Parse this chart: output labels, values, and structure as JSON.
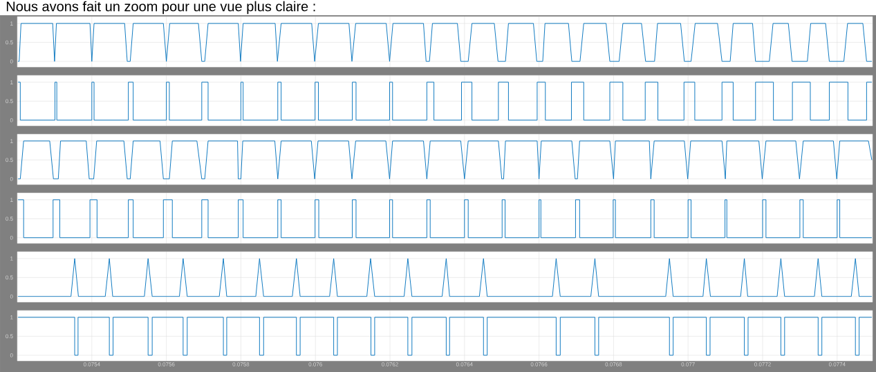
{
  "chart_data": [
    {
      "type": "line",
      "title": "Nous avons fait un zoom pour une vue plus claire :",
      "color": "#0072bd",
      "grid": true,
      "tick_labels": "y",
      "xlim": [
        0.0752,
        0.077495
      ],
      "ylim": [
        -0.15,
        1.18
      ],
      "xticks": [
        0.0754,
        0.0756,
        0.0758,
        0.076,
        0.0762,
        0.0764,
        0.0766,
        0.0768,
        0.077,
        0.0772,
        0.0774
      ],
      "yticks": [
        0,
        0.5,
        1
      ],
      "x": [
        0.075202,
        0.075205,
        0.07521,
        0.075295,
        0.0753,
        0.075305,
        0.075395,
        0.0754,
        0.075406,
        0.075488,
        0.075495,
        0.075503,
        0.075511,
        0.075592,
        0.0756,
        0.075609,
        0.075686,
        0.075695,
        0.075703,
        0.075712,
        0.075793,
        0.075799,
        0.075806,
        0.075892,
        0.075898,
        0.075908,
        0.07599,
        0.075998,
        0.076008,
        0.07609,
        0.076098,
        0.076108,
        0.07619,
        0.076199,
        0.076208,
        0.07629,
        0.076297,
        0.076306,
        0.076314,
        0.076381,
        0.07639,
        0.07641,
        0.07642,
        0.07648,
        0.07649,
        0.07651,
        0.076518,
        0.076585,
        0.076594,
        0.07661,
        0.076616,
        0.076679,
        0.076688,
        0.07671,
        0.07672,
        0.07678,
        0.07679,
        0.076815,
        0.076825,
        0.076875,
        0.076886,
        0.07691,
        0.076918,
        0.07698,
        0.07699,
        0.077008,
        0.077019,
        0.077079,
        0.077091,
        0.077113,
        0.077121,
        0.077173,
        0.077181,
        0.077218,
        0.077228,
        0.077269,
        0.077279,
        0.07732,
        0.077329,
        0.077369,
        0.077379,
        0.077418,
        0.077428,
        0.077469,
        0.077479,
        0.077493
      ],
      "values": [
        0,
        0,
        1,
        1,
        0,
        1,
        1,
        0,
        1,
        1,
        0,
        0,
        1,
        1,
        0,
        1,
        1,
        0,
        0,
        1,
        1,
        0,
        1,
        1,
        0,
        1,
        1,
        0,
        1,
        1,
        0,
        1,
        1,
        0,
        1,
        1,
        0,
        0,
        1,
        1,
        0,
        0,
        1,
        1,
        0,
        0,
        1,
        1,
        0,
        0,
        1,
        1,
        0,
        0,
        1,
        1,
        0,
        0,
        1,
        1,
        0,
        0,
        1,
        1,
        0,
        0,
        1,
        1,
        0,
        0,
        1,
        1,
        0,
        0,
        1,
        1,
        0,
        0,
        1,
        1,
        0,
        0,
        1,
        1,
        0,
        0
      ]
    },
    {
      "type": "step",
      "color": "#0072bd",
      "grid": true,
      "tick_labels": "y",
      "xlim": [
        0.0752,
        0.077495
      ],
      "ylim": [
        -0.15,
        1.18
      ],
      "xticks": [
        0.0754,
        0.0756,
        0.0758,
        0.076,
        0.0762,
        0.0764,
        0.0766,
        0.0768,
        0.077,
        0.0772,
        0.0774
      ],
      "yticks": [
        0,
        0.5,
        1
      ],
      "x": [
        0.075202,
        0.075208,
        0.075301,
        0.075306,
        0.0754,
        0.075406,
        0.075498,
        0.075511,
        0.0756,
        0.075608,
        0.075695,
        0.075712,
        0.0758,
        0.075806,
        0.075899,
        0.075908,
        0.075999,
        0.076008,
        0.076099,
        0.076109,
        0.076199,
        0.076207,
        0.076299,
        0.076318,
        0.076392,
        0.07642,
        0.076491,
        0.076518,
        0.076595,
        0.076617,
        0.076687,
        0.07672,
        0.07679,
        0.076825,
        0.076885,
        0.076919,
        0.076989,
        0.077018,
        0.077091,
        0.077121,
        0.077181,
        0.077229,
        0.07728,
        0.077328,
        0.077379,
        0.077429,
        0.077479,
        0.077493
      ],
      "values": [
        1,
        0,
        1,
        0,
        1,
        0,
        1,
        0,
        1,
        0,
        1,
        0,
        1,
        0,
        1,
        0,
        1,
        0,
        1,
        0,
        1,
        0,
        1,
        0,
        1,
        0,
        1,
        0,
        1,
        0,
        1,
        0,
        1,
        0,
        1,
        0,
        1,
        0,
        1,
        0,
        1,
        0,
        1,
        0,
        1,
        0,
        1,
        1
      ]
    },
    {
      "type": "line",
      "color": "#0072bd",
      "grid": true,
      "tick_labels": "y",
      "xlim": [
        0.0752,
        0.077495
      ],
      "ylim": [
        -0.15,
        1.18
      ],
      "xticks": [
        0.0754,
        0.0756,
        0.0758,
        0.076,
        0.0762,
        0.0764,
        0.0766,
        0.0768,
        0.077,
        0.0772,
        0.0774
      ],
      "yticks": [
        0,
        0.5,
        1
      ],
      "x": [
        0.075202,
        0.075208,
        0.075217,
        0.075287,
        0.075297,
        0.07531,
        0.075316,
        0.075385,
        0.075393,
        0.075405,
        0.075413,
        0.075486,
        0.075495,
        0.075503,
        0.075511,
        0.075583,
        0.075592,
        0.075608,
        0.075616,
        0.075682,
        0.075695,
        0.075703,
        0.075712,
        0.075791,
        0.075793,
        0.0758,
        0.075805,
        0.075891,
        0.075899,
        0.075908,
        0.075989,
        0.075998,
        0.076007,
        0.076089,
        0.076098,
        0.076108,
        0.076189,
        0.076199,
        0.076207,
        0.07629,
        0.076299,
        0.076308,
        0.07639,
        0.0764,
        0.07641,
        0.076491,
        0.0765,
        0.076505,
        0.07651,
        0.076595,
        0.0766,
        0.076606,
        0.076688,
        0.076697,
        0.076703,
        0.076709,
        0.07679,
        0.0768,
        0.076805,
        0.076896,
        0.0769,
        0.076909,
        0.07699,
        0.076999,
        0.077007,
        0.077091,
        0.0771,
        0.077104,
        0.07719,
        0.077199,
        0.077209,
        0.077289,
        0.077299,
        0.077309,
        0.07739,
        0.077399,
        0.077407,
        0.077484,
        0.077493
      ],
      "values": [
        0,
        0,
        1,
        1,
        0,
        0,
        1,
        1,
        0,
        0,
        1,
        1,
        0,
        0,
        1,
        1,
        0,
        0,
        1,
        1,
        0,
        0,
        1,
        1,
        0,
        0,
        1,
        1,
        0,
        1,
        1,
        0,
        1,
        1,
        0,
        1,
        1,
        0,
        1,
        1,
        0,
        1,
        1,
        0,
        1,
        1,
        0,
        0,
        1,
        1,
        0,
        1,
        1,
        0,
        0,
        1,
        1,
        0,
        1,
        1,
        0,
        1,
        1,
        0,
        1,
        1,
        0,
        1,
        1,
        0,
        1,
        1,
        0,
        1,
        1,
        0,
        1,
        1,
        0.5
      ]
    },
    {
      "type": "step",
      "color": "#0072bd",
      "grid": true,
      "tick_labels": "y",
      "xlim": [
        0.0752,
        0.077495
      ],
      "ylim": [
        -0.15,
        1.18
      ],
      "xticks": [
        0.0754,
        0.0756,
        0.0758,
        0.076,
        0.0762,
        0.0764,
        0.0766,
        0.0768,
        0.077,
        0.0772,
        0.0774
      ],
      "yticks": [
        0,
        0.5,
        1
      ],
      "x": [
        0.075202,
        0.075217,
        0.075296,
        0.075314,
        0.075395,
        0.075414,
        0.075498,
        0.075511,
        0.075592,
        0.075616,
        0.075695,
        0.075712,
        0.075793,
        0.075806,
        0.075899,
        0.075908,
        0.075999,
        0.076009,
        0.076099,
        0.076109,
        0.076199,
        0.076207,
        0.076299,
        0.076308,
        0.0764,
        0.07641,
        0.076501,
        0.076509,
        0.0766,
        0.076605,
        0.076698,
        0.076709,
        0.076799,
        0.076805,
        0.0769,
        0.076909,
        0.077,
        0.077008,
        0.077099,
        0.077104,
        0.0772,
        0.077209,
        0.0773,
        0.077309,
        0.0774,
        0.077407,
        0.077493
      ],
      "values": [
        1,
        0,
        1,
        0,
        1,
        0,
        1,
        0,
        1,
        0,
        1,
        0,
        1,
        0,
        1,
        0,
        1,
        0,
        1,
        0,
        1,
        0,
        1,
        0,
        1,
        0,
        1,
        0,
        1,
        0,
        1,
        0,
        1,
        0,
        1,
        0,
        1,
        0,
        1,
        0,
        1,
        0,
        1,
        0,
        1,
        0,
        0
      ]
    },
    {
      "type": "line",
      "color": "#0072bd",
      "grid": true,
      "tick_labels": "y",
      "xlim": [
        0.0752,
        0.077495
      ],
      "ylim": [
        -0.15,
        1.18
      ],
      "xticks": [
        0.0754,
        0.0756,
        0.0758,
        0.076,
        0.0762,
        0.0764,
        0.0766,
        0.0768,
        0.077,
        0.0772,
        0.0774
      ],
      "yticks": [
        0,
        0.5,
        1
      ],
      "x": [
        0.075202,
        0.075344,
        0.075354,
        0.075364,
        0.075436,
        0.075447,
        0.075456,
        0.075541,
        0.075551,
        0.075562,
        0.075635,
        0.075645,
        0.075656,
        0.075742,
        0.075753,
        0.075762,
        0.07584,
        0.07585,
        0.075861,
        0.075938,
        0.075949,
        0.075959,
        0.076038,
        0.076049,
        0.076059,
        0.076138,
        0.076148,
        0.076159,
        0.076238,
        0.076248,
        0.076259,
        0.07634,
        0.076351,
        0.07636,
        0.07644,
        0.076451,
        0.076461,
        0.076636,
        0.076646,
        0.076657,
        0.076739,
        0.07675,
        0.07676,
        0.07694,
        0.07695,
        0.07696,
        0.07704,
        0.077049,
        0.07706,
        0.077141,
        0.077151,
        0.07716,
        0.077239,
        0.077249,
        0.077259,
        0.077339,
        0.077349,
        0.077359,
        0.077438,
        0.077449,
        0.077459,
        0.077493
      ],
      "values": [
        0,
        0,
        1,
        0,
        0,
        1,
        0,
        0,
        1,
        0,
        0,
        1,
        0,
        0,
        1,
        0,
        0,
        1,
        0,
        0,
        1,
        0,
        0,
        1,
        0,
        0,
        1,
        0,
        0,
        1,
        0,
        0,
        1,
        0,
        0,
        1,
        0,
        0,
        1,
        0,
        0,
        1,
        0,
        0,
        1,
        0,
        0,
        1,
        0,
        0,
        1,
        0,
        0,
        1,
        0,
        0,
        1,
        0,
        0,
        1,
        0,
        0
      ]
    },
    {
      "type": "step",
      "color": "#0072bd",
      "grid": true,
      "xlim": [
        0.0752,
        0.077495
      ],
      "ylim": [
        -0.15,
        1.18
      ],
      "xticks": [
        0.0754,
        0.0756,
        0.0758,
        0.076,
        0.0762,
        0.0764,
        0.0766,
        0.0768,
        0.077,
        0.0772,
        0.0774
      ],
      "yticks": [
        0,
        0.5,
        1
      ],
      "x": [
        0.075202,
        0.075354,
        0.075363,
        0.075447,
        0.075457,
        0.075551,
        0.075562,
        0.075645,
        0.075656,
        0.075753,
        0.075762,
        0.07585,
        0.075861,
        0.075949,
        0.075959,
        0.076049,
        0.076059,
        0.076149,
        0.076159,
        0.076248,
        0.076259,
        0.076351,
        0.07636,
        0.076451,
        0.076461,
        0.076646,
        0.076657,
        0.07675,
        0.07676,
        0.07695,
        0.07696,
        0.077049,
        0.077059,
        0.077151,
        0.077161,
        0.077249,
        0.077259,
        0.077349,
        0.077359,
        0.077449,
        0.077459,
        0.077493
      ],
      "values": [
        1,
        0,
        1,
        0,
        1,
        0,
        1,
        0,
        1,
        0,
        1,
        0,
        1,
        0,
        1,
        0,
        1,
        0,
        1,
        0,
        1,
        0,
        1,
        0,
        1,
        0,
        1,
        0,
        1,
        0,
        1,
        0,
        1,
        0,
        1,
        0,
        1,
        0,
        1,
        0,
        1,
        1
      ]
    }
  ]
}
